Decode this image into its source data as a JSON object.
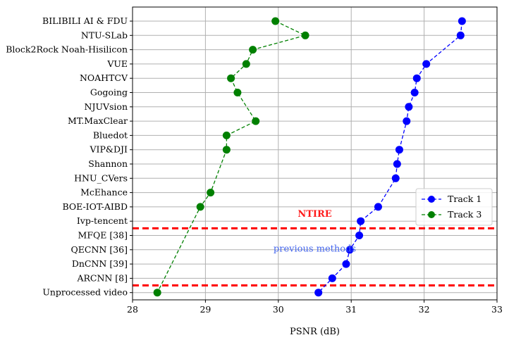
{
  "chart_data": {
    "type": "scatter",
    "xlabel": "PSNR (dB)",
    "xlim": [
      28,
      33
    ],
    "xticks": [
      28,
      29,
      30,
      31,
      32,
      33
    ],
    "categories": [
      "BILIBILI AI & FDU",
      "NTU-SLab",
      "Block2Rock Noah-Hisilicon",
      "VUE",
      "NOAHTCV",
      "Gogoing",
      "NJUVsion",
      "MT.MaxClear",
      "Bluedot",
      "VIP&DJI",
      "Shannon",
      "HNU_CVers",
      "McEhance",
      "BOE-IOT-AIBD",
      "Ivp-tencent",
      "MFQE [38]",
      "QECNN [36]",
      "DnCNN [39]",
      "ARCNN [8]",
      "Unprocessed video"
    ],
    "series": [
      {
        "name": "Track 1",
        "color": "#0000ff",
        "values": [
          32.52,
          32.5,
          null,
          32.03,
          31.9,
          31.87,
          31.79,
          31.76,
          null,
          31.66,
          31.63,
          31.61,
          null,
          31.37,
          31.13,
          31.11,
          30.98,
          30.93,
          30.74,
          30.55
        ]
      },
      {
        "name": "Track 3",
        "color": "#008000",
        "values": [
          29.96,
          30.37,
          29.65,
          29.56,
          29.35,
          29.44,
          null,
          29.69,
          29.29,
          29.29,
          null,
          null,
          29.07,
          28.93,
          null,
          null,
          null,
          null,
          null,
          28.34
        ]
      }
    ],
    "annotations": {
      "ntire": "NTIRE",
      "previous": "previous methods",
      "divider_color": "#ff0000"
    },
    "grid": true,
    "legend_position": "center-right"
  }
}
